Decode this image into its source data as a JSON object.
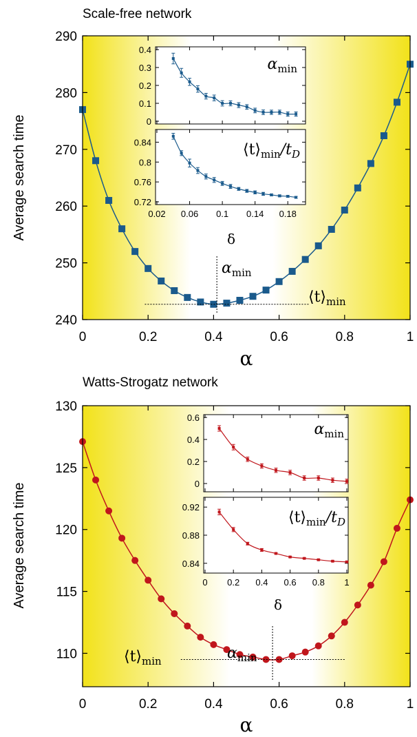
{
  "colors": {
    "sf_series": "#1a5a8c",
    "ws_series": "#c0161c",
    "gradient_edge": "#f2e21a",
    "gradient_center": "#ffffff"
  },
  "chart_data": [
    {
      "id": "sf",
      "type": "line",
      "title": "Scale-free network",
      "xlabel": "α",
      "ylabel": "Average search time",
      "xlim": [
        0,
        1
      ],
      "ylim": [
        240,
        290
      ],
      "xticks": [
        "0",
        "0.2",
        "0.4",
        "0.6",
        "0.8",
        "1"
      ],
      "yticks": [
        "240",
        "250",
        "260",
        "270",
        "280",
        "290"
      ],
      "marker": "square",
      "background": "horizontal gradient, yellow at edges, white near minimum",
      "series": [
        {
          "x": [
            0,
            0.04,
            0.08,
            0.12,
            0.16,
            0.2,
            0.24,
            0.28,
            0.32,
            0.36,
            0.4,
            0.44,
            0.48,
            0.52,
            0.56,
            0.6,
            0.64,
            0.68,
            0.72,
            0.76,
            0.8,
            0.84,
            0.88,
            0.92,
            0.96,
            1.0
          ],
          "y": [
            277,
            268,
            261,
            256,
            252,
            249,
            246.8,
            245.1,
            243.9,
            243.1,
            242.7,
            242.9,
            243.4,
            244.1,
            245.2,
            246.7,
            248.5,
            250.6,
            253,
            255.9,
            259.3,
            263.2,
            267.5,
            272.4,
            278.3,
            285
          ]
        }
      ],
      "annotations": [
        {
          "label": "α",
          "label_sub": "min",
          "x": 0.41,
          "kind": "vline"
        },
        {
          "label": "⟨t⟩",
          "label_sub": "min",
          "y": 242.7,
          "x_range": [
            0.19,
            0.69
          ],
          "kind": "hline"
        }
      ],
      "insets": [
        {
          "type": "line",
          "label_main": "α",
          "label_sub": "min",
          "xlim": [
            0.02,
            0.2
          ],
          "ylim": [
            0,
            0.4
          ],
          "yticks": [
            "0",
            "0.1",
            "0.2",
            "0.3",
            "0.4"
          ],
          "x": [
            0.04,
            0.05,
            0.06,
            0.07,
            0.08,
            0.09,
            0.1,
            0.11,
            0.12,
            0.13,
            0.14,
            0.15,
            0.16,
            0.17,
            0.18,
            0.19
          ],
          "y": [
            0.35,
            0.27,
            0.22,
            0.18,
            0.14,
            0.13,
            0.1,
            0.1,
            0.09,
            0.08,
            0.06,
            0.05,
            0.05,
            0.05,
            0.04,
            0.04
          ],
          "err": [
            0.03,
            0.025,
            0.02,
            0.018,
            0.016,
            0.016,
            0.015,
            0.014,
            0.014,
            0.013,
            0.013,
            0.013,
            0.012,
            0.012,
            0.012,
            0.012
          ]
        },
        {
          "type": "line",
          "label_main": "⟨t⟩",
          "label_sub": "min",
          "label_tail": "/t",
          "label_tail_sub": "D",
          "xlim": [
            0.02,
            0.2
          ],
          "ylim": [
            0.72,
            0.86
          ],
          "yticks": [
            "0.72",
            "0.76",
            "0.8",
            "0.84"
          ],
          "xticks": [
            "0.02",
            "0.06",
            "0.1",
            "0.14",
            "0.18"
          ],
          "xlabel": "δ",
          "x": [
            0.04,
            0.05,
            0.06,
            0.07,
            0.08,
            0.09,
            0.1,
            0.11,
            0.12,
            0.13,
            0.14,
            0.15,
            0.16,
            0.17,
            0.18,
            0.19
          ],
          "y": [
            0.852,
            0.818,
            0.798,
            0.783,
            0.771,
            0.764,
            0.757,
            0.751,
            0.746,
            0.742,
            0.739,
            0.736,
            0.734,
            0.732,
            0.731,
            0.729
          ],
          "err": [
            0.006,
            0.005,
            0.008,
            0.006,
            0.005,
            0.005,
            0.004,
            0.004,
            0.003,
            0.003,
            0.003,
            0.003,
            0.002,
            0.002,
            0.002,
            0.002
          ]
        }
      ]
    },
    {
      "id": "ws",
      "type": "line",
      "title": "Watts-Strogatz network",
      "xlabel": "α",
      "ylabel": "Average search time",
      "xlim": [
        0,
        1
      ],
      "ylim": [
        107.3,
        130
      ],
      "xticks": [
        "0",
        "0.2",
        "0.4",
        "0.6",
        "0.8",
        "1"
      ],
      "yticks": [
        "110",
        "115",
        "120",
        "125",
        "130"
      ],
      "marker": "circle",
      "background": "horizontal gradient, yellow at edges, white near minimum",
      "series": [
        {
          "x": [
            0,
            0.04,
            0.08,
            0.12,
            0.16,
            0.2,
            0.24,
            0.28,
            0.32,
            0.36,
            0.4,
            0.44,
            0.48,
            0.52,
            0.56,
            0.6,
            0.64,
            0.68,
            0.72,
            0.76,
            0.8,
            0.84,
            0.88,
            0.92,
            0.96,
            1.0
          ],
          "y": [
            127.1,
            124,
            121.5,
            119.3,
            117.5,
            115.9,
            114.4,
            113.2,
            112.2,
            111.3,
            110.7,
            110.3,
            109.9,
            109.7,
            109.5,
            109.5,
            109.8,
            110.1,
            110.6,
            111.4,
            112.5,
            113.9,
            115.5,
            117.4,
            120.1,
            122.4
          ]
        }
      ],
      "annotations": [
        {
          "label": "α",
          "label_sub": "min",
          "x": 0.58,
          "kind": "vline"
        },
        {
          "label": "⟨t⟩",
          "label_sub": "min",
          "y": 109.5,
          "x_range": [
            0.3,
            0.8
          ],
          "kind": "hline"
        }
      ],
      "insets": [
        {
          "type": "line",
          "label_main": "α",
          "label_sub": "min",
          "xlim": [
            0,
            1
          ],
          "ylim": [
            -0.05,
            0.6
          ],
          "yticks": [
            "0",
            "0.2",
            "0.4",
            "0.6"
          ],
          "x": [
            0.1,
            0.2,
            0.3,
            0.4,
            0.5,
            0.6,
            0.7,
            0.8,
            0.9,
            1.0
          ],
          "y": [
            0.5,
            0.33,
            0.22,
            0.16,
            0.12,
            0.1,
            0.05,
            0.05,
            0.03,
            0.02
          ],
          "err": [
            0.025,
            0.025,
            0.02,
            0.02,
            0.02,
            0.02,
            0.02,
            0.02,
            0.02,
            0.02
          ]
        },
        {
          "type": "line",
          "label_main": "⟨t⟩",
          "label_sub": "min",
          "label_tail": "/t",
          "label_tail_sub": "D",
          "xlim": [
            0,
            1
          ],
          "ylim": [
            0.83,
            0.93
          ],
          "yticks": [
            "0.84",
            "0.88",
            "0.92"
          ],
          "xticks": [
            "0",
            "0.2",
            "0.4",
            "0.6",
            "0.8",
            "1"
          ],
          "xlabel": "δ",
          "x": [
            0.1,
            0.2,
            0.3,
            0.4,
            0.5,
            0.6,
            0.7,
            0.8,
            0.9,
            1.0
          ],
          "y": [
            0.913,
            0.888,
            0.868,
            0.859,
            0.854,
            0.849,
            0.847,
            0.845,
            0.843,
            0.842
          ],
          "err": [
            0.004,
            0.003,
            0.002,
            0.002,
            0.001,
            0.001,
            0.001,
            0.001,
            0.001,
            0.001
          ]
        }
      ]
    }
  ]
}
